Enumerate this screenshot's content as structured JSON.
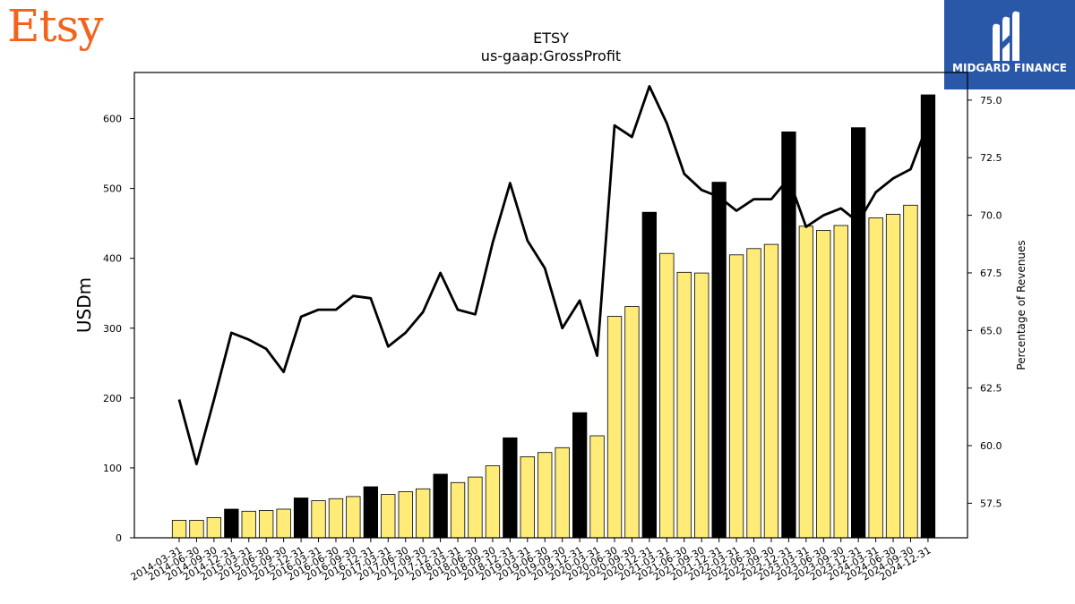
{
  "brand": {
    "name": "Etsy",
    "color": "#f1641e"
  },
  "partner": {
    "name": "MIDGARD FINANCE",
    "color": "#2a58a8",
    "icon": "midgard-m-icon"
  },
  "chart_data": {
    "type": "bar",
    "title": "ETSY",
    "subtitle": "us-gaap:GrossProfit",
    "ylabel": "USDm",
    "y2label": "Percentage of Revenues",
    "ylim": [
      0,
      666
    ],
    "y2lim": [
      56.0,
      76.2
    ],
    "yticks": [
      0,
      100,
      200,
      300,
      400,
      500,
      600
    ],
    "y2ticks": [
      "57.5",
      "60.0",
      "62.5",
      "65.0",
      "67.5",
      "70.0",
      "72.5",
      "75.0"
    ],
    "bar_colors": {
      "quarter": "#ffeb78",
      "annual": "#000000"
    },
    "categories": [
      "2014-03-31",
      "2014-06-30",
      "2014-09-30",
      "2014-12-31",
      "2015-03-31",
      "2015-06-30",
      "2015-09-30",
      "2015-12-31",
      "2016-03-31",
      "2016-06-30",
      "2016-09-30",
      "2016-12-31",
      "2017-03-31",
      "2017-06-30",
      "2017-09-30",
      "2017-12-31",
      "2018-03-31",
      "2018-06-30",
      "2018-09-30",
      "2018-12-31",
      "2019-03-31",
      "2019-06-30",
      "2019-09-30",
      "2019-12-31",
      "2020-03-31",
      "2020-06-30",
      "2020-09-30",
      "2020-12-31",
      "2021-03-31",
      "2021-06-30",
      "2021-09-30",
      "2021-12-31",
      "2022-03-31",
      "2022-06-30",
      "2022-09-30",
      "2022-12-31",
      "2023-03-31",
      "2023-06-30",
      "2023-09-30",
      "2023-12-31",
      "2024-03-31",
      "2024-06-30",
      "2024-09-30",
      "2024-12-31"
    ],
    "series": [
      {
        "type": "bar",
        "values": [
          25,
          25,
          29,
          41,
          38,
          39,
          41,
          57,
          53,
          56,
          59,
          73,
          62,
          66,
          70,
          91,
          79,
          87,
          103,
          143,
          116,
          122,
          129,
          179,
          146,
          317,
          331,
          466,
          407,
          380,
          379,
          509,
          405,
          414,
          420,
          581,
          446,
          440,
          447,
          587,
          458,
          463,
          476,
          634
        ],
        "annual": [
          false,
          false,
          false,
          true,
          false,
          false,
          false,
          true,
          false,
          false,
          false,
          true,
          false,
          false,
          false,
          true,
          false,
          false,
          false,
          true,
          false,
          false,
          false,
          true,
          false,
          false,
          false,
          true,
          false,
          false,
          false,
          true,
          false,
          false,
          false,
          true,
          false,
          false,
          false,
          true,
          false,
          false,
          false,
          true
        ]
      },
      {
        "type": "line",
        "axis": "right",
        "values": [
          62.0,
          59.2,
          62.0,
          64.9,
          64.6,
          64.2,
          63.2,
          65.6,
          65.9,
          65.9,
          66.5,
          66.4,
          64.3,
          64.9,
          65.8,
          67.5,
          65.9,
          65.7,
          68.8,
          71.4,
          68.9,
          67.7,
          65.1,
          66.3,
          63.9,
          73.9,
          73.4,
          75.6,
          74.0,
          71.8,
          71.1,
          70.8,
          70.2,
          70.7,
          70.7,
          71.6,
          69.5,
          70.0,
          70.3,
          69.7,
          71.0,
          71.6,
          72.0,
          74.0
        ]
      }
    ]
  }
}
